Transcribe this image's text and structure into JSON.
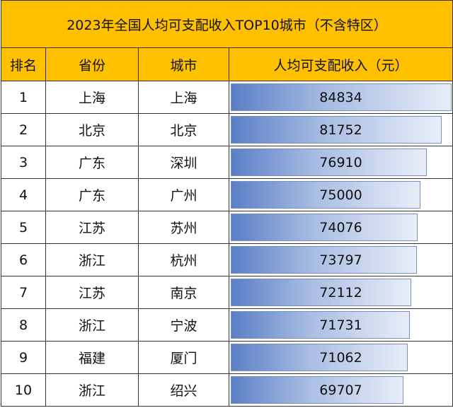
{
  "title": "2023年全国人均可支配收入TOP10城市（不含特区）",
  "headers": [
    "排名",
    "省份",
    "城市",
    "人均可支配收入（元）"
  ],
  "max_income": 84834,
  "rows": [
    {
      "rank": "1",
      "province": "上海",
      "city": "上海",
      "income": "84834",
      "income_value": 84834
    },
    {
      "rank": "2",
      "province": "北京",
      "city": "北京",
      "income": "81752",
      "income_value": 81752
    },
    {
      "rank": "3",
      "province": "广东",
      "city": "深圳",
      "income": "76910",
      "income_value": 76910
    },
    {
      "rank": "4",
      "province": "广东",
      "city": "广州",
      "income": "75000",
      "income_value": 75000
    },
    {
      "rank": "5",
      "province": "江苏",
      "city": "苏州",
      "income": "74076",
      "income_value": 74076
    },
    {
      "rank": "6",
      "province": "浙江",
      "city": "杭州",
      "income": "73797",
      "income_value": 73797
    },
    {
      "rank": "7",
      "province": "江苏",
      "city": "南京",
      "income": "72112",
      "income_value": 72112
    },
    {
      "rank": "8",
      "province": "浙江",
      "city": "宁波",
      "income": "71731",
      "income_value": 71731
    },
    {
      "rank": "9",
      "province": "福建",
      "city": "厦门",
      "income": "71062",
      "income_value": 71062
    },
    {
      "rank": "10",
      "province": "浙江",
      "city": "绍兴",
      "income": "69707",
      "income_value": 69707
    }
  ],
  "colors": {
    "header_bg": "#FFC000",
    "bar_dark": "#5B7FC6",
    "bar_light": "#E8EEF8"
  }
}
